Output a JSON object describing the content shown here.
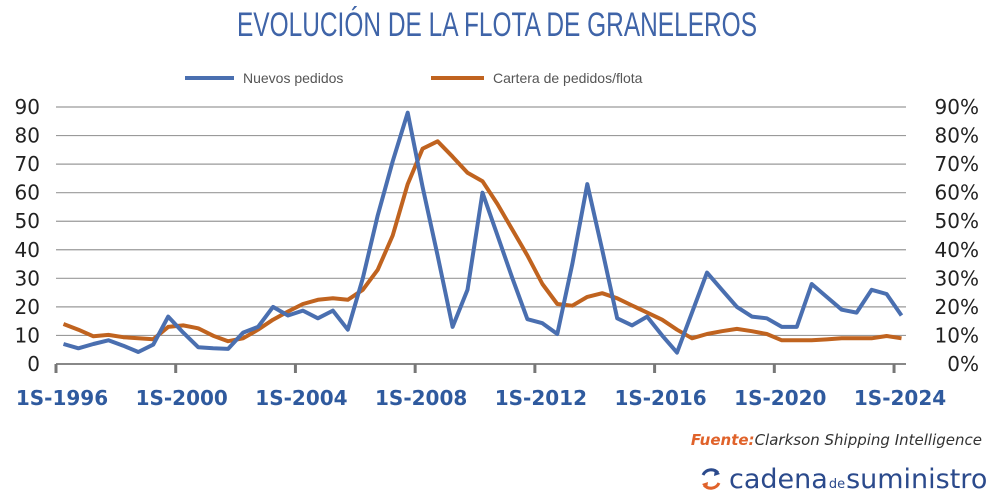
{
  "chart_data": {
    "type": "line",
    "title": "EVOLUCIÓN DE LA FLOTA DE GRANELEROS",
    "x_tick_labels": [
      "1S-1996",
      "1S-2000",
      "1S-2004",
      "1S-2008",
      "1S-2012",
      "1S-2016",
      "1S-2020",
      "1S-2024"
    ],
    "ylim": [
      0,
      90
    ],
    "y_ticks": [
      "0",
      "10",
      "20",
      "30",
      "40",
      "50",
      "60",
      "70",
      "80",
      "90"
    ],
    "y2lim": [
      0,
      90
    ],
    "y2_ticks": [
      "0%",
      "10%",
      "20%",
      "30%",
      "40%",
      "50%",
      "60%",
      "70%",
      "80%",
      "90%"
    ],
    "grid": true,
    "legend": "top",
    "series": [
      {
        "name": "Nuevos pedidos",
        "axis": "left",
        "color": "#4a6fb0",
        "values": [
          7,
          5.5,
          7,
          8.3,
          6.4,
          4.2,
          6.8,
          16.6,
          11,
          5.9,
          5.5,
          5.3,
          11,
          13,
          20,
          17,
          18.7,
          16,
          18.7,
          12,
          30,
          52,
          71,
          88,
          62,
          38,
          13,
          26,
          60,
          45,
          30,
          15.7,
          14.3,
          10.5,
          35,
          63,
          40,
          16,
          13.5,
          16.6,
          10,
          4,
          18,
          32,
          26,
          20,
          16.6,
          16,
          13,
          13,
          28,
          23.5,
          19,
          18,
          26,
          24.5,
          17
        ]
      },
      {
        "name": "Cartera de pedidos/flota",
        "axis": "right",
        "unit": "%",
        "color": "#c0631f",
        "values": [
          14,
          12,
          9.7,
          10.2,
          9.4,
          9,
          8.7,
          13,
          13.5,
          12.5,
          9.9,
          8,
          9,
          12,
          15.5,
          18.4,
          21,
          22.5,
          23,
          22.5,
          26,
          33,
          45,
          63,
          75.4,
          78,
          72.6,
          67,
          64,
          56,
          47,
          38,
          28,
          21,
          20.4,
          23.5,
          24.8,
          23,
          20.5,
          18,
          15.5,
          12,
          9,
          10.5,
          11.5,
          12.3,
          11.5,
          10.5,
          8.3,
          8.3,
          8.3,
          8.6,
          9,
          9,
          9,
          9.8,
          9
        ]
      }
    ]
  },
  "source": {
    "label": "Fuente:",
    "text": "Clarkson Shipping Intelligence"
  },
  "brand": {
    "part1": "cadena",
    "part2": "de",
    "part3": "suministro",
    "icon": "refresh-arrows-icon"
  },
  "colors": {
    "title": "#3f64a8",
    "axis_labels": "#2f5a9e",
    "source_label": "#e0622a",
    "brand": "#2b4a8c"
  }
}
